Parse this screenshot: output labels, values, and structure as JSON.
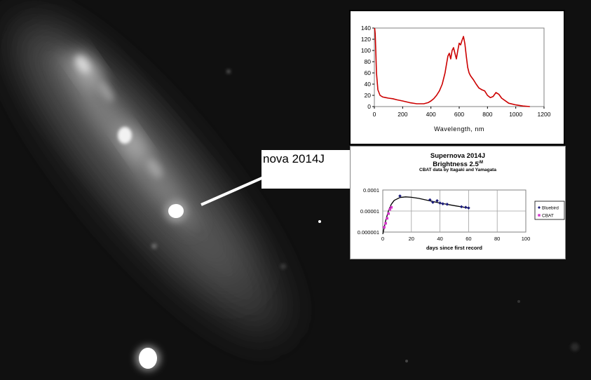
{
  "callout": {
    "label": "nova 2014J"
  },
  "chart_data": [
    {
      "type": "line",
      "title": "",
      "xlabel": "Wavelength, nm",
      "ylabel": "",
      "xlim": [
        0,
        1200
      ],
      "ylim": [
        0,
        140
      ],
      "xticks": [
        "0",
        "200",
        "400",
        "600",
        "800",
        "1000",
        "1200"
      ],
      "yticks": [
        "0",
        "20",
        "40",
        "60",
        "80",
        "100",
        "120",
        "140"
      ],
      "grid": false,
      "color": "#cc0000",
      "series": [
        {
          "x": [
            2,
            6,
            10,
            15,
            25,
            40,
            60,
            80,
            100,
            130,
            160,
            200,
            250,
            300,
            350,
            380,
            400,
            420,
            440,
            460,
            480,
            500,
            510,
            520,
            530,
            540,
            550,
            560,
            570,
            580,
            590,
            600,
            610,
            620,
            630,
            640,
            650,
            660,
            670,
            680,
            700,
            720,
            740,
            760,
            780,
            800,
            820,
            840,
            860,
            880,
            900,
            950,
            1000,
            1050,
            1100
          ],
          "y": [
            140,
            130,
            100,
            60,
            30,
            20,
            17,
            16,
            15,
            14,
            12,
            10,
            7,
            5,
            5,
            7,
            10,
            14,
            20,
            28,
            40,
            60,
            75,
            90,
            95,
            85,
            100,
            105,
            95,
            85,
            100,
            113,
            110,
            118,
            125,
            112,
            90,
            70,
            60,
            55,
            48,
            40,
            33,
            30,
            28,
            20,
            16,
            18,
            25,
            22,
            15,
            6,
            3,
            1,
            0
          ]
        }
      ]
    },
    {
      "type": "scatter",
      "title": "Supernova 2014J",
      "subtitle": "Brightness 2.5",
      "subtitle_sup": "-M",
      "note": "CBAT data by Itagaki and Yamagata",
      "xlabel": "days since first record",
      "ylabel": "",
      "xlim": [
        0,
        100
      ],
      "ylim": [
        1e-06,
        0.0001
      ],
      "yscale": "log",
      "xticks": [
        "0",
        "20",
        "40",
        "60",
        "80",
        "100"
      ],
      "yticks": [
        "0.0001",
        "0.00001",
        "0.000001"
      ],
      "grid": true,
      "legend": "right",
      "series": [
        {
          "name": "Bluebird",
          "color": "#1a1a7a",
          "x": [
            12,
            33,
            35,
            38,
            40,
            42,
            45,
            55,
            58,
            60
          ],
          "y": [
            5.2e-05,
            3.4e-05,
            2.6e-05,
            3.1e-05,
            2.4e-05,
            2.2e-05,
            2.1e-05,
            1.6e-05,
            1.5e-05,
            1.4e-05
          ]
        },
        {
          "name": "CBAT",
          "color": "#d633cc",
          "x": [
            1,
            2,
            3,
            4,
            5,
            6
          ],
          "y": [
            1.7e-06,
            2.6e-06,
            4.5e-06,
            7.5e-06,
            1.2e-05,
            1.5e-05
          ]
        }
      ],
      "fit": {
        "color": "#000000",
        "x": [
          0,
          1,
          2,
          4,
          6,
          8,
          12,
          16,
          20,
          25,
          30,
          40,
          50,
          60
        ],
        "y": [
          8e-07,
          1.6e-06,
          3.5e-06,
          1.05e-05,
          2.1e-05,
          3.2e-05,
          4.4e-05,
          4.7e-05,
          4.5e-05,
          4e-05,
          3.4e-05,
          2.4e-05,
          1.8e-05,
          1.4e-05
        ]
      }
    }
  ]
}
